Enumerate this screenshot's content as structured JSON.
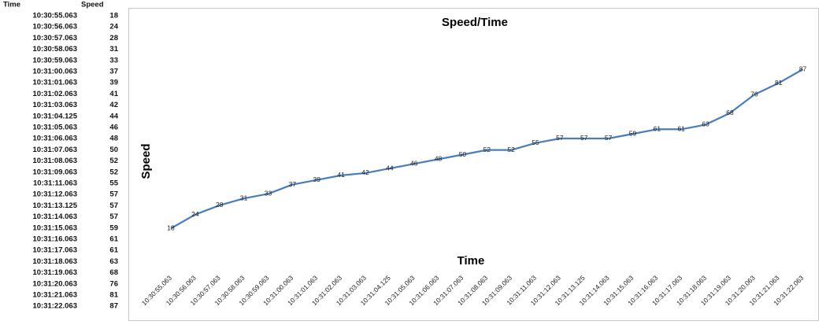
{
  "table": {
    "headers": [
      "Time",
      "Speed"
    ]
  },
  "chart_data": {
    "type": "line",
    "title": "Speed/Time",
    "x_label": "Time",
    "y_label": "Speed",
    "categories": [
      "10:30:55.063",
      "10:30:56.063",
      "10:30:57.063",
      "10:30:58.063",
      "10:30:59.063",
      "10:31:00.063",
      "10:31:01.063",
      "10:31:02.063",
      "10:31:03.063",
      "10:31:04.125",
      "10:31:05.063",
      "10:31:06.063",
      "10:31:07.063",
      "10:31:08.063",
      "10:31:09.063",
      "10:31:11.063",
      "10:31:12.063",
      "10:31:13.125",
      "10:31:14.063",
      "10:31:15.063",
      "10:31:16.063",
      "10:31:17.063",
      "10:31:18.063",
      "10:31:19.063",
      "10:31:20.063",
      "10:31:21.063",
      "10:31:22.063"
    ],
    "values": [
      18,
      24,
      28,
      31,
      33,
      37,
      39,
      41,
      42,
      44,
      46,
      48,
      50,
      52,
      52,
      55,
      57,
      57,
      57,
      59,
      61,
      61,
      63,
      68,
      76,
      81,
      87
    ],
    "color": "#4a7ebb",
    "ylim": [
      0,
      100
    ],
    "data_labels": true
  }
}
